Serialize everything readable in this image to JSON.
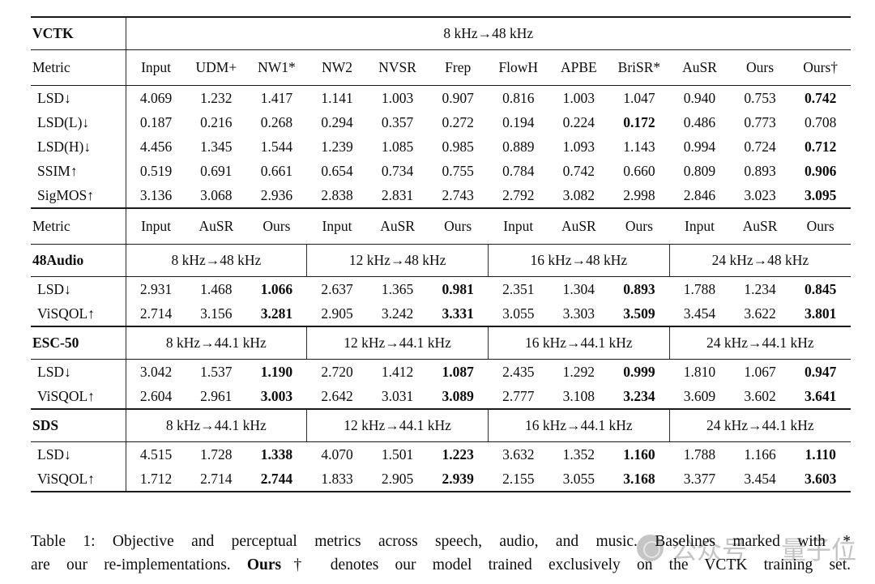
{
  "colors": {
    "rule": "#1a1a1a",
    "text": "#0d0d0d",
    "watermark_gray": "#8a8a8a"
  },
  "vctk": {
    "section_label": "VCTK",
    "span_label": "8 kHz→48 kHz",
    "header": {
      "metric": "Metric",
      "columns": [
        "Input",
        "UDM+",
        "NW1*",
        "NW2",
        "NVSR",
        "Frep",
        "FlowH",
        "APBE",
        "BriSR*",
        "AuSR",
        "Ours",
        "Ours†"
      ]
    },
    "rows": [
      {
        "metric": "LSD↓",
        "values": [
          "4.069",
          "1.232",
          "1.417",
          "1.141",
          "1.003",
          "0.907",
          "0.816",
          "1.003",
          "1.047",
          "0.940",
          "0.753",
          "0.742"
        ],
        "bold": [
          11
        ]
      },
      {
        "metric": "LSD(L)↓",
        "values": [
          "0.187",
          "0.216",
          "0.268",
          "0.294",
          "0.357",
          "0.272",
          "0.194",
          "0.224",
          "0.172",
          "0.486",
          "0.773",
          "0.708"
        ],
        "bold": [
          8
        ]
      },
      {
        "metric": "LSD(H)↓",
        "values": [
          "4.456",
          "1.345",
          "1.544",
          "1.239",
          "1.085",
          "0.985",
          "0.889",
          "1.093",
          "1.143",
          "0.994",
          "0.724",
          "0.712"
        ],
        "bold": [
          11
        ]
      },
      {
        "metric": "SSIM↑",
        "values": [
          "0.519",
          "0.691",
          "0.661",
          "0.654",
          "0.734",
          "0.755",
          "0.784",
          "0.742",
          "0.660",
          "0.809",
          "0.893",
          "0.906"
        ],
        "bold": [
          11
        ]
      },
      {
        "metric": "SigMOS↑",
        "values": [
          "3.136",
          "3.068",
          "2.936",
          "2.838",
          "2.831",
          "2.743",
          "2.792",
          "3.082",
          "2.998",
          "2.846",
          "3.023",
          "3.095"
        ],
        "bold": [
          11
        ]
      }
    ]
  },
  "lower_header": {
    "metric": "Metric",
    "columns": [
      "Input",
      "AuSR",
      "Ours",
      "Input",
      "AuSR",
      "Ours",
      "Input",
      "AuSR",
      "Ours",
      "Input",
      "AuSR",
      "Ours"
    ]
  },
  "sections": [
    {
      "name": "48Audio",
      "groups": [
        "8 kHz→48 kHz",
        "12 kHz→48 kHz",
        "16 kHz→48 kHz",
        "24 kHz→48 kHz"
      ],
      "rows": [
        {
          "metric": "LSD↓",
          "values": [
            "2.931",
            "1.468",
            "1.066",
            "2.637",
            "1.365",
            "0.981",
            "2.351",
            "1.304",
            "0.893",
            "1.788",
            "1.234",
            "0.845"
          ],
          "bold": [
            2,
            5,
            8,
            11
          ]
        },
        {
          "metric": "ViSQOL↑",
          "values": [
            "2.714",
            "3.156",
            "3.281",
            "2.905",
            "3.242",
            "3.331",
            "3.055",
            "3.303",
            "3.509",
            "3.454",
            "3.622",
            "3.801"
          ],
          "bold": [
            2,
            5,
            8,
            11
          ]
        }
      ]
    },
    {
      "name": "ESC-50",
      "groups": [
        "8 kHz→44.1 kHz",
        "12 kHz→44.1 kHz",
        "16 kHz→44.1 kHz",
        "24 kHz→44.1 kHz"
      ],
      "rows": [
        {
          "metric": "LSD↓",
          "values": [
            "3.042",
            "1.537",
            "1.190",
            "2.720",
            "1.412",
            "1.087",
            "2.435",
            "1.292",
            "0.999",
            "1.810",
            "1.067",
            "0.947"
          ],
          "bold": [
            2,
            5,
            8,
            11
          ]
        },
        {
          "metric": "ViSQOL↑",
          "values": [
            "2.604",
            "2.961",
            "3.003",
            "2.642",
            "3.031",
            "3.089",
            "2.777",
            "3.108",
            "3.234",
            "3.609",
            "3.602",
            "3.641"
          ],
          "bold": [
            2,
            5,
            8,
            11
          ]
        }
      ]
    },
    {
      "name": "SDS",
      "groups": [
        "8 kHz→44.1 kHz",
        "12 kHz→44.1 kHz",
        "16 kHz→44.1 kHz",
        "24 kHz→44.1 kHz"
      ],
      "rows": [
        {
          "metric": "LSD↓",
          "values": [
            "4.515",
            "1.728",
            "1.338",
            "4.070",
            "1.501",
            "1.223",
            "3.632",
            "1.352",
            "1.160",
            "1.788",
            "1.166",
            "1.110"
          ],
          "bold": [
            2,
            5,
            8,
            11
          ]
        },
        {
          "metric": "ViSQOL↑",
          "values": [
            "1.712",
            "2.714",
            "2.744",
            "1.833",
            "2.905",
            "2.939",
            "2.155",
            "3.055",
            "3.168",
            "3.377",
            "3.454",
            "3.603"
          ],
          "bold": [
            2,
            5,
            8,
            11
          ]
        }
      ]
    }
  ],
  "caption": {
    "line1": "Table 1: Objective and perceptual metrics across speech, audio, and music. Baselines marked with *",
    "line2_pre": "are our re-implementations. ",
    "line2_bold": "Ours",
    "line2_post": "† denotes our model trained exclusively on the VCTK training set."
  },
  "watermark": {
    "word1": "公众号",
    "word2": "量子位"
  }
}
